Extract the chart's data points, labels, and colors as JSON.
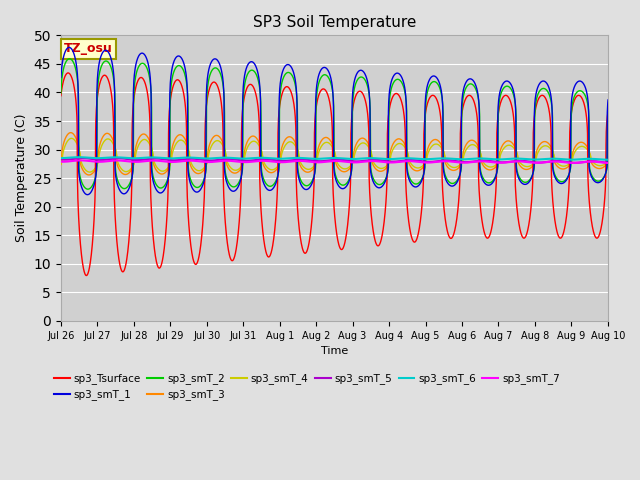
{
  "title": "SP3 Soil Temperature",
  "ylabel": "Soil Temperature (C)",
  "xlabel": "Time",
  "tz_label": "TZ_osu",
  "ylim": [
    0,
    50
  ],
  "background_color": "#e0e0e0",
  "plot_bg_color": "#d0d0d0",
  "series_colors": {
    "sp3_Tsurface": "#ff0000",
    "sp3_smT_1": "#0000dd",
    "sp3_smT_2": "#00cc00",
    "sp3_smT_3": "#ff8800",
    "sp3_smT_4": "#cccc00",
    "sp3_smT_5": "#aa00cc",
    "sp3_smT_6": "#00cccc",
    "sp3_smT_7": "#ff00ff"
  },
  "tick_labels": [
    "Jul 26",
    "Jul 27",
    "Jul 28",
    "Jul 29",
    "Jul 30",
    "Jul 31",
    "Aug 1",
    "Aug 2",
    "Aug 3",
    "Aug 4",
    "Aug 5",
    "Aug 6",
    "Aug 7",
    "Aug 8",
    "Aug 9",
    "Aug 10"
  ],
  "tick_positions": [
    0,
    1,
    2,
    3,
    4,
    5,
    6,
    7,
    8,
    9,
    10,
    11,
    12,
    13,
    14,
    15
  ],
  "num_days": 16
}
